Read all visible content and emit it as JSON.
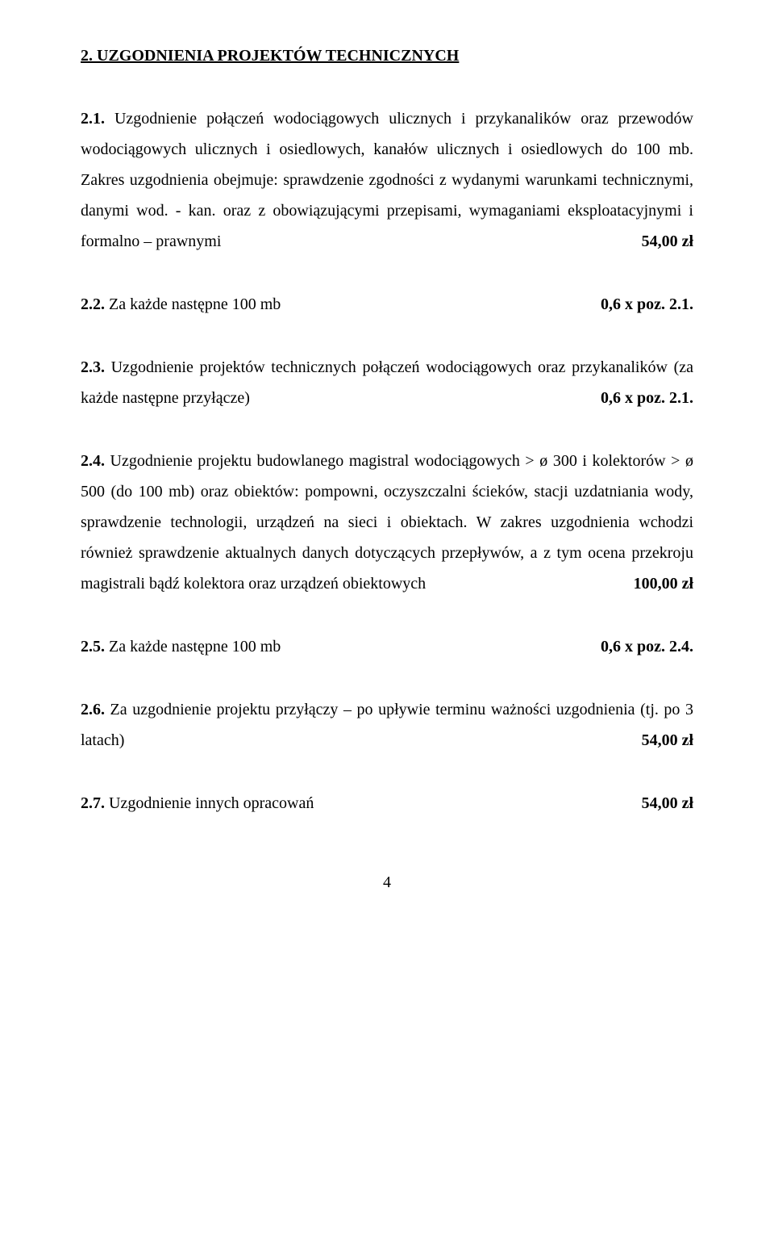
{
  "heading": "2. UZGODNIENIA PROJEKTÓW TECHNICZNYCH",
  "p21": {
    "lead": "2.1.",
    "body": " Uzgodnienie połączeń wodociągowych ulicznych i przykanalików oraz przewodów wodociągowych ulicznych i osiedlowych, kanałów ulicznych i osiedlowych do 100 mb. Zakres uzgodnienia obejmuje: sprawdzenie zgodności z wydanymi warunkami technicznymi, danymi wod. - kan. oraz z obowiązującymi przepisami, wymaganiami eksploatacyjnymi i formalno – prawnymi",
    "price": "54,00 zł"
  },
  "p22": {
    "lead": "2.2.",
    "body": " Za każde następne 100 mb",
    "price": "0,6 x poz. 2.1."
  },
  "p23": {
    "lead": "2.3.",
    "body": " Uzgodnienie projektów technicznych połączeń wodociągowych oraz przykanalików (za każde następne przyłącze)",
    "price": "0,6 x poz. 2.1."
  },
  "p24": {
    "lead": "2.4.",
    "body": " Uzgodnienie projektu budowlanego magistral wodociągowych > ø 300 i kolektorów > ø 500 (do 100 mb) oraz obiektów: pompowni, oczyszczalni ścieków, stacji uzdatniania wody, sprawdzenie technologii, urządzeń na sieci i obiektach. W zakres uzgodnienia wchodzi również sprawdzenie aktualnych danych dotyczących przepływów, a z tym ocena przekroju magistrali bądź kolektora oraz urządzeń obiektowych",
    "price": "100,00 zł"
  },
  "p25": {
    "lead": "2.5.",
    "body": " Za każde następne 100 mb",
    "price": "0,6 x poz. 2.4."
  },
  "p26": {
    "lead": "2.6.",
    "body": " Za uzgodnienie projektu przyłączy – po upływie terminu ważności uzgodnienia (tj. po 3 latach)",
    "price": "54,00 zł"
  },
  "p27": {
    "lead": "2.7.",
    "body": " Uzgodnienie innych opracowań",
    "price": "54,00 zł"
  },
  "pageNumber": "4"
}
